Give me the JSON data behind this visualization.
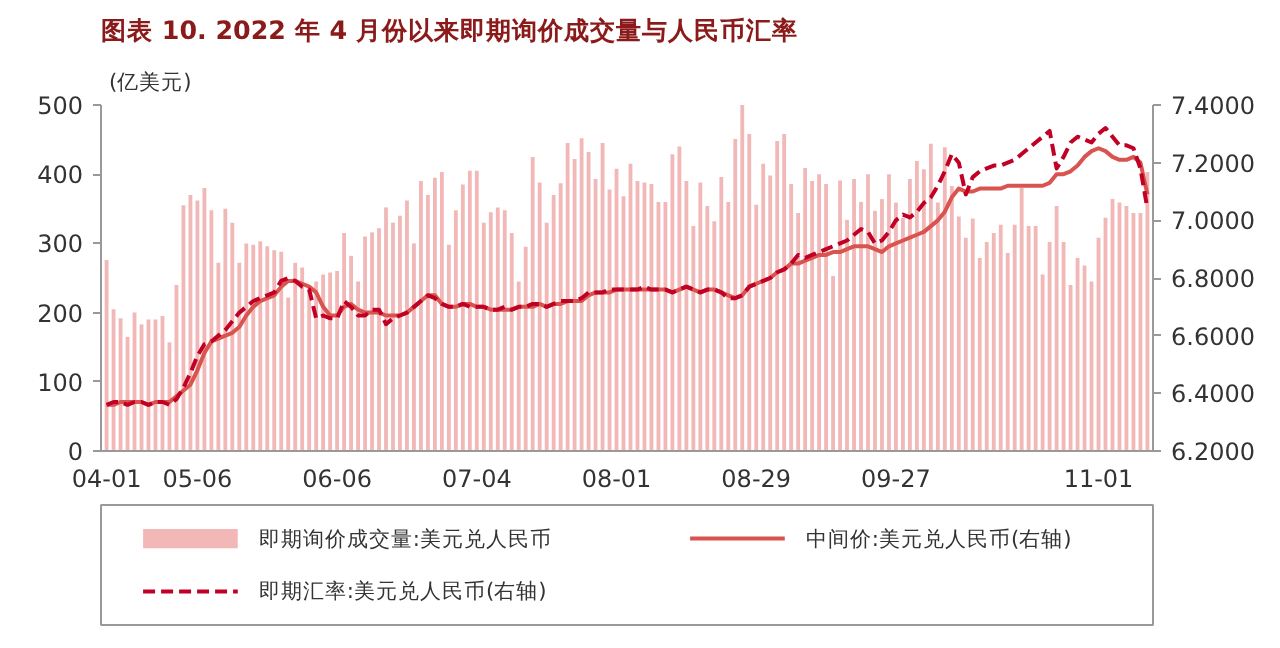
{
  "chart_data": {
    "type": "bar",
    "title": "图表 10. 2022 年 4 月份以来即期询价成交量与人民币汇率",
    "ylabel": "(亿美元)",
    "categories": [
      "04-01",
      null,
      null,
      null,
      null,
      null,
      null,
      null,
      null,
      null,
      null,
      null,
      null,
      "05-06",
      null,
      null,
      null,
      null,
      null,
      null,
      null,
      null,
      null,
      null,
      null,
      null,
      null,
      null,
      null,
      null,
      null,
      null,
      null,
      "06-06",
      null,
      null,
      null,
      null,
      null,
      null,
      null,
      null,
      null,
      null,
      null,
      null,
      null,
      null,
      null,
      null,
      null,
      null,
      null,
      "07-04",
      null,
      null,
      null,
      null,
      null,
      null,
      null,
      null,
      null,
      null,
      null,
      null,
      null,
      null,
      null,
      null,
      null,
      null,
      null,
      "08-01",
      null,
      null,
      null,
      null,
      null,
      null,
      null,
      null,
      null,
      null,
      null,
      null,
      null,
      null,
      null,
      null,
      null,
      null,
      null,
      "08-29",
      null,
      null,
      null,
      null,
      null,
      null,
      null,
      null,
      null,
      null,
      null,
      null,
      null,
      null,
      null,
      null,
      null,
      null,
      null,
      "09-27",
      null,
      null,
      null,
      null,
      null,
      null,
      null,
      null,
      null,
      null,
      null,
      null,
      null,
      null,
      null,
      null,
      null,
      null,
      null,
      null,
      null,
      null,
      null,
      null,
      null,
      null,
      null,
      null,
      "11-01",
      null,
      null,
      null,
      null,
      null,
      null,
      null
    ],
    "series": [
      {
        "name": "即期询价成交量:美元兑人民币",
        "color": "#f2b8b8",
        "values": [
          276,
          205,
          192,
          165,
          200,
          183,
          190,
          190,
          195,
          157,
          240,
          355,
          370,
          362,
          380,
          348,
          272,
          350,
          330,
          272,
          300,
          298,
          303,
          296,
          290,
          288,
          222,
          272,
          265,
          238,
          245,
          255,
          258,
          260,
          315,
          282,
          245,
          310,
          316,
          322,
          352,
          330,
          340,
          362,
          300,
          390,
          370,
          395,
          403,
          298,
          348,
          385,
          405,
          405,
          330,
          345,
          352,
          348,
          315,
          245,
          295,
          425,
          388,
          330,
          370,
          387,
          445,
          422,
          452,
          432,
          393,
          445,
          378,
          408,
          368,
          415,
          390,
          388,
          386,
          360,
          360,
          429,
          440,
          390,
          325,
          388,
          354,
          332,
          396,
          360,
          451,
          500,
          458,
          356,
          415,
          398,
          448,
          458,
          386,
          344,
          409,
          390,
          400,
          386,
          253,
          391,
          334,
          393,
          360,
          400,
          347,
          364,
          400,
          359,
          337,
          393,
          419,
          407,
          444,
          359,
          439,
          383,
          339,
          308,
          336,
          279,
          302,
          315,
          327,
          286,
          327,
          380,
          325,
          325,
          255,
          302,
          354,
          302,
          240,
          279,
          268,
          245,
          308,
          337,
          364,
          359,
          354,
          344,
          344,
          403
        ]
      },
      {
        "name": "中间价:美元兑人民币(右轴)",
        "type": "line",
        "axis": "y2",
        "line_style": "solid",
        "color": "#d9534f",
        "values": [
          6.36,
          6.36,
          6.37,
          6.37,
          6.37,
          6.37,
          6.36,
          6.37,
          6.37,
          6.37,
          6.39,
          6.41,
          6.43,
          6.48,
          6.54,
          6.58,
          6.59,
          6.6,
          6.61,
          6.63,
          6.67,
          6.7,
          6.72,
          6.73,
          6.74,
          6.77,
          6.79,
          6.79,
          6.78,
          6.77,
          6.75,
          6.7,
          6.67,
          6.67,
          6.7,
          6.71,
          6.69,
          6.68,
          6.68,
          6.68,
          6.67,
          6.67,
          6.67,
          6.68,
          6.7,
          6.72,
          6.74,
          6.74,
          6.71,
          6.7,
          6.7,
          6.71,
          6.71,
          6.7,
          6.7,
          6.69,
          6.69,
          6.69,
          6.69,
          6.7,
          6.7,
          6.7,
          6.71,
          6.7,
          6.71,
          6.71,
          6.72,
          6.72,
          6.72,
          6.74,
          6.75,
          6.75,
          6.75,
          6.76,
          6.76,
          6.76,
          6.76,
          6.76,
          6.76,
          6.76,
          6.76,
          6.75,
          6.76,
          6.77,
          6.76,
          6.75,
          6.76,
          6.76,
          6.75,
          6.74,
          6.73,
          6.74,
          6.77,
          6.78,
          6.79,
          6.8,
          6.82,
          6.83,
          6.85,
          6.85,
          6.86,
          6.87,
          6.88,
          6.88,
          6.89,
          6.89,
          6.9,
          6.91,
          6.91,
          6.91,
          6.9,
          6.89,
          6.91,
          6.92,
          6.93,
          6.94,
          6.95,
          6.96,
          6.98,
          7.0,
          7.03,
          7.08,
          7.11,
          7.1,
          7.1,
          7.11,
          7.11,
          7.11,
          7.11,
          7.12,
          7.12,
          7.12,
          7.12,
          7.12,
          7.12,
          7.13,
          7.16,
          7.16,
          7.17,
          7.19,
          7.22,
          7.24,
          7.25,
          7.24,
          7.22,
          7.21,
          7.21,
          7.22,
          7.2,
          7.09
        ]
      },
      {
        "name": "即期汇率:美元兑人民币(右轴)",
        "type": "line",
        "axis": "y2",
        "line_style": "dashed",
        "color": "#c00025",
        "values": [
          6.36,
          6.37,
          6.37,
          6.36,
          6.37,
          6.37,
          6.36,
          6.37,
          6.37,
          6.36,
          6.38,
          6.42,
          6.47,
          6.53,
          6.57,
          6.58,
          6.6,
          6.62,
          6.65,
          6.68,
          6.7,
          6.72,
          6.73,
          6.74,
          6.75,
          6.79,
          6.8,
          6.79,
          6.77,
          6.76,
          6.66,
          6.67,
          6.66,
          6.66,
          6.72,
          6.7,
          6.67,
          6.67,
          6.69,
          6.69,
          6.64,
          6.66,
          6.67,
          6.68,
          6.7,
          6.72,
          6.74,
          6.73,
          6.71,
          6.7,
          6.7,
          6.71,
          6.7,
          6.7,
          6.7,
          6.69,
          6.69,
          6.7,
          6.69,
          6.7,
          6.7,
          6.71,
          6.71,
          6.7,
          6.71,
          6.72,
          6.72,
          6.72,
          6.73,
          6.75,
          6.75,
          6.75,
          6.76,
          6.76,
          6.76,
          6.76,
          6.76,
          6.77,
          6.76,
          6.76,
          6.76,
          6.75,
          6.76,
          6.77,
          6.76,
          6.75,
          6.76,
          6.76,
          6.75,
          6.73,
          6.73,
          6.74,
          6.77,
          6.78,
          6.79,
          6.8,
          6.82,
          6.83,
          6.85,
          6.88,
          6.87,
          6.88,
          6.89,
          6.9,
          6.91,
          6.92,
          6.93,
          6.95,
          6.97,
          6.96,
          6.92,
          6.93,
          6.96,
          7.0,
          7.02,
          7.01,
          7.03,
          7.06,
          7.08,
          7.12,
          7.17,
          7.23,
          7.2,
          7.09,
          7.15,
          7.17,
          7.18,
          7.19,
          7.19,
          7.2,
          7.21,
          7.23,
          7.25,
          7.27,
          7.29,
          7.31,
          7.18,
          7.22,
          7.27,
          7.29,
          7.28,
          7.27,
          7.3,
          7.32,
          7.29,
          7.26,
          7.26,
          7.25,
          7.18,
          7.04
        ]
      }
    ],
    "ylim": [
      0,
      500
    ],
    "yticks": [
      0,
      100,
      200,
      300,
      400,
      500
    ],
    "y2lim": [
      6.2,
      7.4
    ],
    "y2ticks": [
      {
        "value": 6.2,
        "label": "6.2000"
      },
      {
        "value": 6.4,
        "label": "6.4000"
      },
      {
        "value": 6.6,
        "label": "6.6000"
      },
      {
        "value": 6.8,
        "label": "6.8000"
      },
      {
        "value": 7.0,
        "label": "7.0000"
      },
      {
        "value": 7.2,
        "label": "7.2000"
      },
      {
        "value": 7.4,
        "label": "7.4000"
      }
    ],
    "grid": false,
    "legend": "bottom"
  }
}
